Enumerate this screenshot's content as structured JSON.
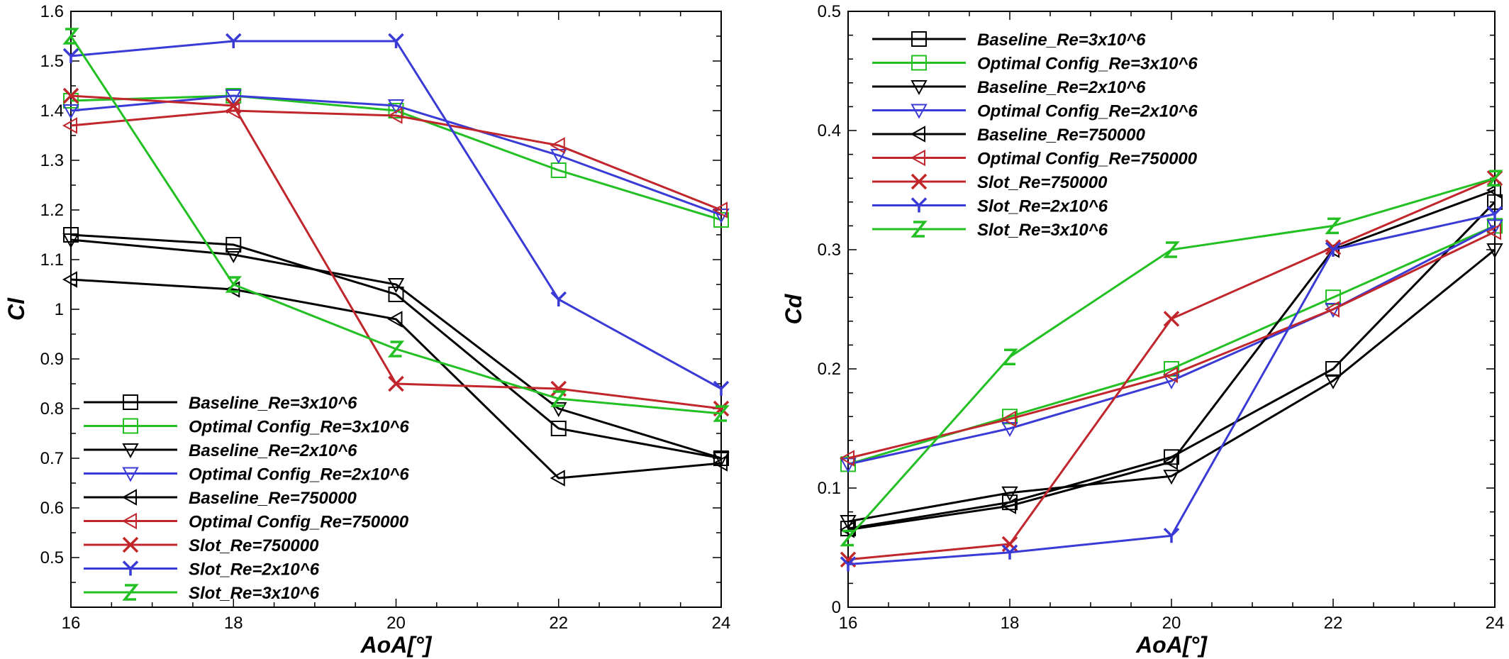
{
  "chart_data": [
    {
      "type": "line",
      "xlabel": "AoA[°]",
      "ylabel": "Cl",
      "xlim": [
        16,
        24
      ],
      "ylim": [
        0.4,
        1.6
      ],
      "xticks": [
        "16",
        "18",
        "20",
        "22",
        "24"
      ],
      "yticks": [
        "0.5",
        "0.6",
        "0.7",
        "0.8",
        "0.9",
        "1",
        "1.1",
        "1.2",
        "1.3",
        "1.4",
        "1.5",
        "1.6"
      ],
      "legend_position": "bottom-left",
      "x": [
        16,
        18,
        20,
        22,
        24
      ],
      "series": [
        {
          "name": "Baseline_Re=3x10^6",
          "color": "#000000",
          "marker": "square",
          "values": [
            1.15,
            1.13,
            1.03,
            0.76,
            0.7
          ]
        },
        {
          "name": "Optimal Config_Re=3x10^6",
          "color": "#22c022",
          "marker": "square",
          "values": [
            1.42,
            1.43,
            1.4,
            1.28,
            1.18
          ]
        },
        {
          "name": "Baseline_Re=2x10^6",
          "color": "#000000",
          "marker": "triangle-down",
          "values": [
            1.14,
            1.11,
            1.05,
            0.8,
            0.7
          ]
        },
        {
          "name": "Optimal Config_Re=2x10^6",
          "color": "#3a3ad6",
          "marker": "triangle-down",
          "values": [
            1.4,
            1.43,
            1.41,
            1.31,
            1.19
          ]
        },
        {
          "name": "Baseline_Re=750000",
          "color": "#000000",
          "marker": "triangle-left",
          "values": [
            1.06,
            1.04,
            0.98,
            0.66,
            0.69
          ]
        },
        {
          "name": "Optimal Config_Re=750000",
          "color": "#c0262c",
          "marker": "triangle-left",
          "values": [
            1.37,
            1.4,
            1.39,
            1.33,
            1.2
          ]
        },
        {
          "name": "Slot_Re=750000",
          "color": "#c0262c",
          "marker": "x",
          "values": [
            1.43,
            1.41,
            0.85,
            0.84,
            0.8
          ]
        },
        {
          "name": "Slot_Re=2x10^6",
          "color": "#3a3ad6",
          "marker": "y",
          "values": [
            1.51,
            1.54,
            1.54,
            1.02,
            0.84
          ]
        },
        {
          "name": "Slot_Re=3x10^6",
          "color": "#22c022",
          "marker": "z",
          "values": [
            1.55,
            1.05,
            0.92,
            0.82,
            0.79
          ]
        }
      ]
    },
    {
      "type": "line",
      "xlabel": "AoA[°]",
      "ylabel": "Cd",
      "xlim": [
        16,
        24
      ],
      "ylim": [
        0,
        0.5
      ],
      "xticks": [
        "16",
        "18",
        "20",
        "22",
        "24"
      ],
      "yticks": [
        "0",
        "0.1",
        "0.2",
        "0.3",
        "0.4",
        "0.5"
      ],
      "legend_position": "top-left",
      "x": [
        16,
        18,
        20,
        22,
        24
      ],
      "series": [
        {
          "name": "Baseline_Re=3x10^6",
          "color": "#000000",
          "marker": "square",
          "values": [
            0.066,
            0.088,
            0.126,
            0.2,
            0.34
          ]
        },
        {
          "name": "Optimal Config_Re=3x10^6",
          "color": "#22c022",
          "marker": "square",
          "values": [
            0.12,
            0.16,
            0.2,
            0.26,
            0.32
          ]
        },
        {
          "name": "Baseline_Re=2x10^6",
          "color": "#000000",
          "marker": "triangle-down",
          "values": [
            0.072,
            0.096,
            0.11,
            0.19,
            0.3
          ]
        },
        {
          "name": "Optimal Config_Re=2x10^6",
          "color": "#3a3ad6",
          "marker": "triangle-down",
          "values": [
            0.12,
            0.15,
            0.19,
            0.25,
            0.32
          ]
        },
        {
          "name": "Baseline_Re=750000",
          "color": "#000000",
          "marker": "triangle-left",
          "values": [
            0.065,
            0.085,
            0.122,
            0.3,
            0.35
          ]
        },
        {
          "name": "Optimal Config_Re=750000",
          "color": "#c0262c",
          "marker": "triangle-left",
          "values": [
            0.125,
            0.158,
            0.195,
            0.25,
            0.315
          ]
        },
        {
          "name": "Slot_Re=750000",
          "color": "#c0262c",
          "marker": "x",
          "values": [
            0.04,
            0.053,
            0.242,
            0.302,
            0.36
          ]
        },
        {
          "name": "Slot_Re=2x10^6",
          "color": "#3a3ad6",
          "marker": "y",
          "values": [
            0.036,
            0.046,
            0.06,
            0.3,
            0.33
          ]
        },
        {
          "name": "Slot_Re=3x10^6",
          "color": "#22c022",
          "marker": "z",
          "values": [
            0.058,
            0.21,
            0.3,
            0.32,
            0.36
          ]
        }
      ]
    }
  ]
}
